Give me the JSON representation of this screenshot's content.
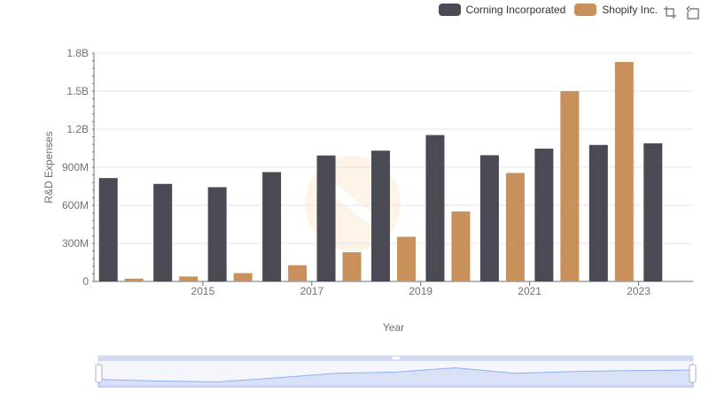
{
  "legend": {
    "items": [
      {
        "name": "Corning Incorporated",
        "color": "#4a4a55"
      },
      {
        "name": "Shopify Inc.",
        "color": "#c8915b"
      }
    ]
  },
  "toolbox": {
    "icons": [
      "zoom-icon",
      "restore-icon"
    ]
  },
  "chart_data": {
    "type": "bar",
    "xlabel": "Year",
    "ylabel": "R&D Expenses",
    "categories": [
      "2014",
      "2015",
      "2016",
      "2017",
      "2018",
      "2019",
      "2020",
      "2021",
      "2022",
      "2023",
      "2024"
    ],
    "x_tick_labels": [
      "2015",
      "2017",
      "2019",
      "2021",
      "2023"
    ],
    "y_ticks": [
      "0",
      "300M",
      "600M",
      "900M",
      "1.2B",
      "1.5B",
      "1.8B"
    ],
    "ylim": [
      0,
      1800000000
    ],
    "grid": true,
    "legend_position": "top-right",
    "series": [
      {
        "name": "Corning Incorporated",
        "color": "#4a4a55",
        "values": [
          815000000,
          769000000,
          743000000,
          862000000,
          993000000,
          1031000000,
          1154000000,
          995000000,
          1047000000,
          1076000000,
          1089000000
        ]
      },
      {
        "name": "Shopify Inc.",
        "color": "#c8915b",
        "values": [
          22000000,
          39000000,
          66000000,
          128000000,
          230000000,
          352000000,
          552000000,
          855000000,
          1500000000,
          1730000000,
          null
        ]
      }
    ]
  }
}
